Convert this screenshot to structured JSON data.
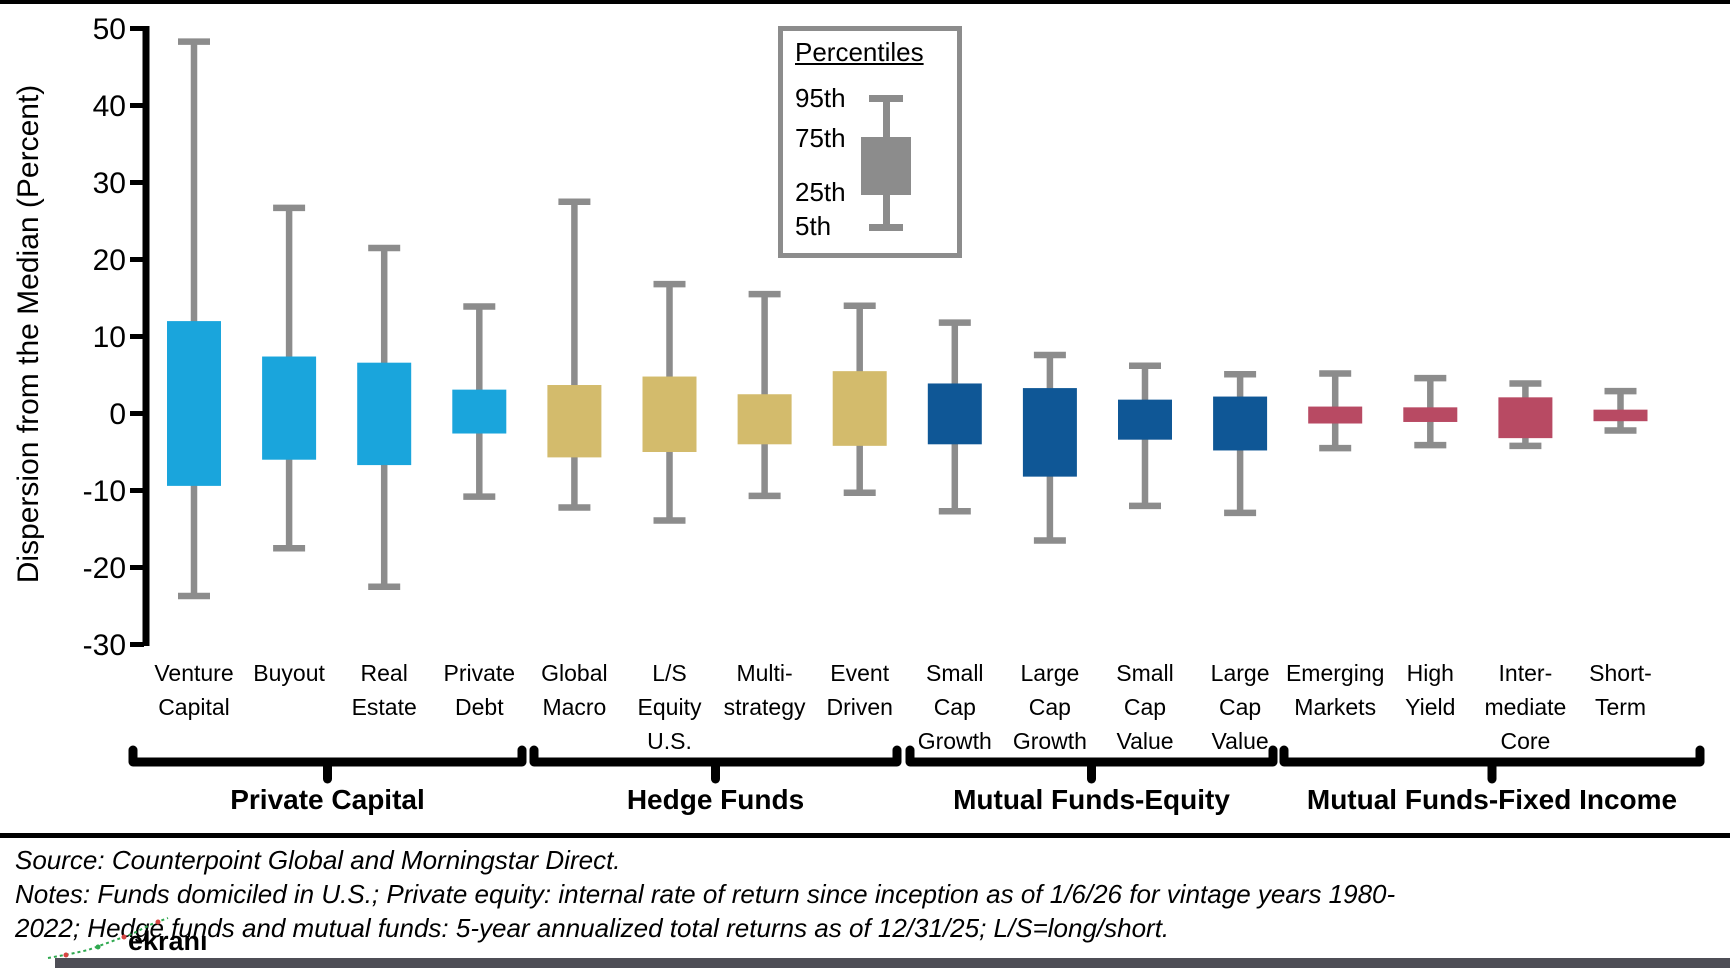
{
  "chart_data": {
    "type": "box-whisker-percentiles",
    "title": "",
    "ylabel": "Dispersion from the Median (Percent)",
    "ylim": [
      -30,
      50
    ],
    "yticks": [
      50,
      40,
      30,
      20,
      10,
      0,
      -10,
      -20,
      -30
    ],
    "grid": false,
    "whisker_color": "#8C8C8C",
    "legend": {
      "title": "Percentiles",
      "labels": [
        "95th",
        "75th",
        "25th",
        "5th"
      ],
      "position": "top-center"
    },
    "groups": [
      {
        "label": "Private Capital",
        "color": "#1AA5DC",
        "categories": [
          {
            "label_lines": [
              "Venture",
              "Capital"
            ],
            "p5": -23.7,
            "p25": -9.4,
            "p75": 12.0,
            "p95": 48.3
          },
          {
            "label_lines": [
              "Buyout"
            ],
            "p5": -17.5,
            "p25": -6.0,
            "p75": 7.4,
            "p95": 26.7
          },
          {
            "label_lines": [
              "Real",
              "Estate"
            ],
            "p5": -22.5,
            "p25": -6.7,
            "p75": 6.6,
            "p95": 21.5
          },
          {
            "label_lines": [
              "Private",
              "Debt"
            ],
            "p5": -10.8,
            "p25": -2.6,
            "p75": 3.1,
            "p95": 13.9
          }
        ]
      },
      {
        "label": "Hedge Funds",
        "color": "#D3BB6C",
        "categories": [
          {
            "label_lines": [
              "Global",
              "Macro"
            ],
            "p5": -12.2,
            "p25": -5.7,
            "p75": 3.7,
            "p95": 27.5
          },
          {
            "label_lines": [
              "L/S",
              "Equity",
              "U.S."
            ],
            "p5": -13.9,
            "p25": -5.0,
            "p75": 4.8,
            "p95": 16.8
          },
          {
            "label_lines": [
              "Multi-",
              "strategy"
            ],
            "p5": -10.7,
            "p25": -4.0,
            "p75": 2.5,
            "p95": 15.5
          },
          {
            "label_lines": [
              "Event",
              "Driven"
            ],
            "p5": -10.3,
            "p25": -4.2,
            "p75": 5.5,
            "p95": 14.0
          }
        ]
      },
      {
        "label": "Mutual Funds-Equity",
        "color": "#0F5796",
        "categories": [
          {
            "label_lines": [
              "Small",
              "Cap",
              "Growth"
            ],
            "p5": -12.7,
            "p25": -4.0,
            "p75": 3.9,
            "p95": 11.8
          },
          {
            "label_lines": [
              "Large",
              "Cap",
              "Growth"
            ],
            "p5": -16.5,
            "p25": -8.2,
            "p75": 3.3,
            "p95": 7.6
          },
          {
            "label_lines": [
              "Small",
              "Cap",
              "Value"
            ],
            "p5": -12.0,
            "p25": -3.4,
            "p75": 1.8,
            "p95": 6.2
          },
          {
            "label_lines": [
              "Large",
              "Cap",
              "Value"
            ],
            "p5": -12.9,
            "p25": -4.8,
            "p75": 2.2,
            "p95": 5.1
          }
        ]
      },
      {
        "label": "Mutual Funds-Fixed Income",
        "color": "#B84A63",
        "categories": [
          {
            "label_lines": [
              "Emerging",
              "Markets"
            ],
            "p5": -4.5,
            "p25": -1.3,
            "p75": 0.9,
            "p95": 5.2
          },
          {
            "label_lines": [
              "High",
              "Yield"
            ],
            "p5": -4.1,
            "p25": -1.1,
            "p75": 0.8,
            "p95": 4.6
          },
          {
            "label_lines": [
              "Inter-",
              "mediate",
              "Core"
            ],
            "p5": -4.2,
            "p25": -3.2,
            "p75": 2.1,
            "p95": 3.9
          },
          {
            "label_lines": [
              "Short-",
              "Term"
            ],
            "p5": -2.2,
            "p25": -1.0,
            "p75": 0.5,
            "p95": 2.9
          }
        ]
      }
    ]
  },
  "footer": {
    "lines": [
      "Source: Counterpoint Global and Morningstar Direct.",
      "Notes: Funds domiciled in U.S.; Private equity: internal rate of return since inception as of 1/6/26 for vintage years 1980-",
      "2022; Hedge funds and mutual funds: 5-year annualized total returns as of 12/31/25; L/S=long/short."
    ]
  },
  "watermark": {
    "text": "ekranı",
    "color": "#F2D200"
  }
}
